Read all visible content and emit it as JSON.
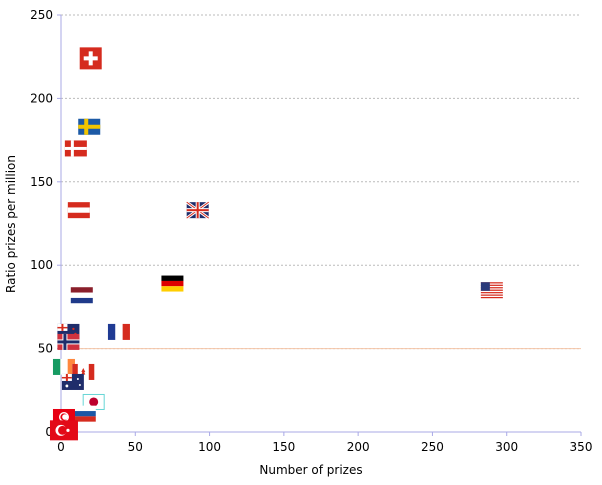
{
  "chart_data": {
    "type": "scatter",
    "xlabel": "Number of prizes",
    "ylabel": "Ratio prizes per million",
    "xlim": [
      0,
      350
    ],
    "ylim": [
      0,
      250
    ],
    "x_ticks": [
      0,
      50,
      100,
      150,
      200,
      250,
      300,
      350
    ],
    "y_ticks": [
      0,
      50,
      100,
      150,
      200,
      250
    ],
    "grid": "horizontal dashed",
    "reference_line": {
      "y": 50,
      "color": "#f5c6a8"
    },
    "colors": {
      "axis": "#a9a9e6",
      "grid": "#bbbbbb",
      "flag_red": "#d52b1e",
      "flag_blue": "#1f3a8a",
      "flag_yellow": "#f2c500"
    },
    "points": [
      {
        "country": "Switzerland",
        "flag": "switzerland-flag",
        "x": 20,
        "y": 224
      },
      {
        "country": "Sweden",
        "flag": "sweden-flag",
        "x": 19,
        "y": 183
      },
      {
        "country": "Denmark",
        "flag": "denmark-flag",
        "x": 10,
        "y": 170
      },
      {
        "country": "Austria",
        "flag": "austria-flag",
        "x": 12,
        "y": 133
      },
      {
        "country": "United Kingdom",
        "flag": "uk-flag",
        "x": 92,
        "y": 133
      },
      {
        "country": "Germany",
        "flag": "germany-flag",
        "x": 75,
        "y": 89
      },
      {
        "country": "Netherlands",
        "flag": "netherlands-flag",
        "x": 14,
        "y": 82
      },
      {
        "country": "United States",
        "flag": "usa-flag",
        "x": 290,
        "y": 85
      },
      {
        "country": "France",
        "flag": "france-flag",
        "x": 39,
        "y": 60
      },
      {
        "country": "New Zealand",
        "flag": "newzealand-flag",
        "x": 5,
        "y": 60
      },
      {
        "country": "Norway",
        "flag": "norway-flag",
        "x": 5,
        "y": 54
      },
      {
        "country": "Ireland",
        "flag": "ireland-flag",
        "x": 2,
        "y": 39
      },
      {
        "country": "Canada",
        "flag": "canada-flag",
        "x": 15,
        "y": 36
      },
      {
        "country": "Australia",
        "flag": "australia-flag",
        "x": 8,
        "y": 30
      },
      {
        "country": "Japan",
        "flag": "japan-flag",
        "x": 22,
        "y": 18
      },
      {
        "country": "Russia",
        "flag": "russia-flag",
        "x": 16,
        "y": 11
      },
      {
        "country": "Tunisia",
        "flag": "tunisia-flag",
        "x": 2,
        "y": 9
      },
      {
        "country": "Turkey",
        "flag": "turkey-flag",
        "x": 2,
        "y": 1
      }
    ]
  }
}
